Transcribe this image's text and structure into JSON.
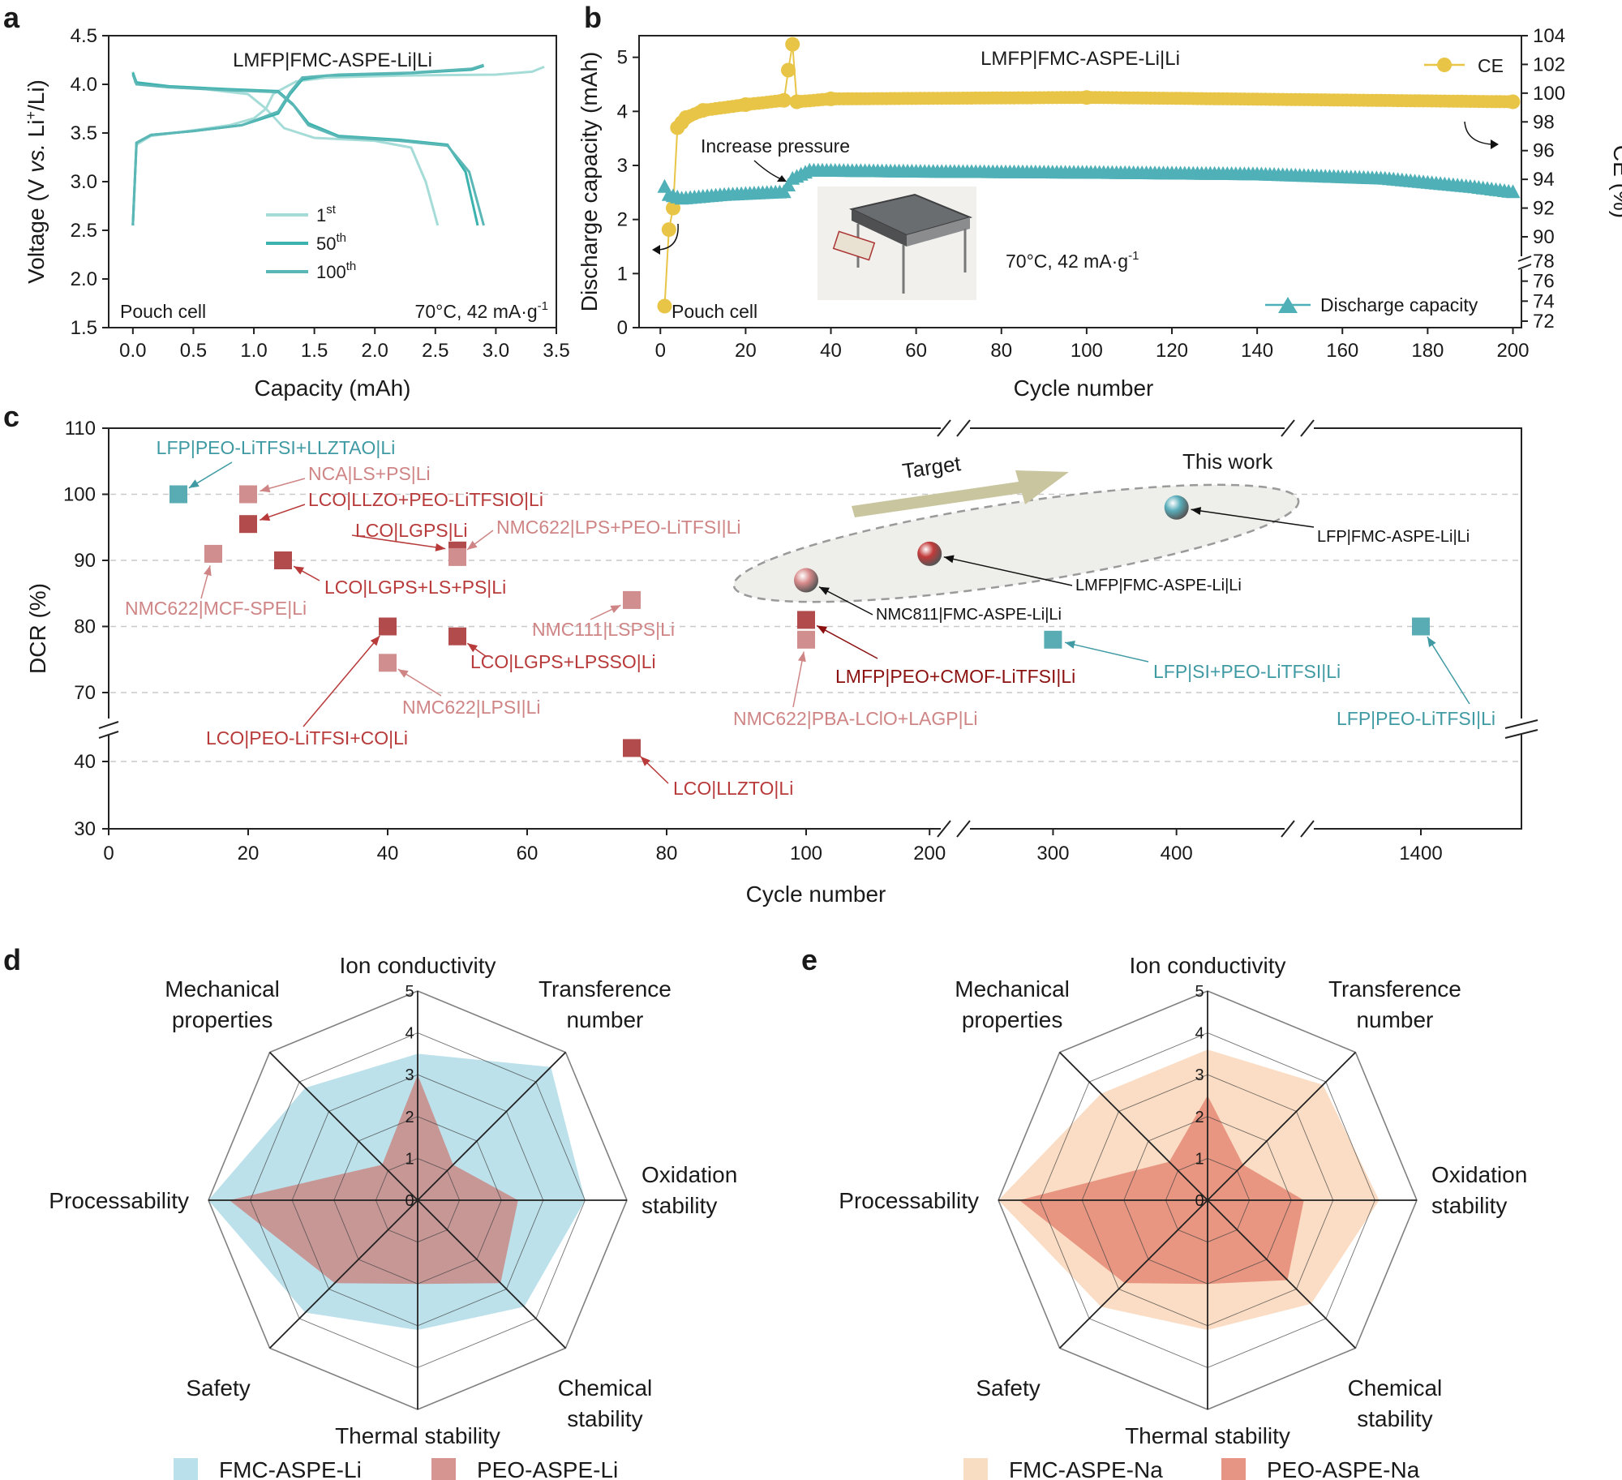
{
  "panels": {
    "a": {
      "letter": "a",
      "chart_data": {
        "type": "line",
        "title": "LMFP|FMC-ASPE-Li|Li",
        "xlabel": "Capacity (mAh)",
        "ylabel": "Voltage (V vs. Li+/Li)",
        "ylabel_parts": {
          "pre": "Voltage (V ",
          "italic": "vs.",
          "mid": " Li",
          "sup": "+",
          "post": "/Li)"
        },
        "xlim": [
          -0.2,
          3.5
        ],
        "ylim": [
          1.5,
          4.5
        ],
        "xticks": [
          "0.0",
          "0.5",
          "1.0",
          "1.5",
          "2.0",
          "2.5",
          "3.0",
          "3.5"
        ],
        "yticks": [
          "1.5",
          "2.0",
          "2.5",
          "3.0",
          "3.5",
          "4.0",
          "4.5"
        ],
        "annotations": {
          "left": "Pouch cell",
          "right": "70°C, 42 mA·g",
          "right_sup": "-1"
        },
        "series": [
          {
            "name": "1st",
            "base": "1",
            "sup": "st",
            "color": "#a6dcd8",
            "charge": [
              [
                0.0,
                2.55
              ],
              [
                0.03,
                3.38
              ],
              [
                0.15,
                3.47
              ],
              [
                0.4,
                3.51
              ],
              [
                0.8,
                3.58
              ],
              [
                1.0,
                3.65
              ],
              [
                1.1,
                3.75
              ],
              [
                1.16,
                3.9
              ],
              [
                1.2,
                3.93
              ],
              [
                1.35,
                4.03
              ],
              [
                1.6,
                4.07
              ],
              [
                2.2,
                4.09
              ],
              [
                3.0,
                4.1
              ],
              [
                3.3,
                4.13
              ],
              [
                3.4,
                4.18
              ]
            ],
            "discharge": [
              [
                0.0,
                4.13
              ],
              [
                0.02,
                4.02
              ],
              [
                0.2,
                3.98
              ],
              [
                0.6,
                3.95
              ],
              [
                0.95,
                3.9
              ],
              [
                1.1,
                3.75
              ],
              [
                1.25,
                3.55
              ],
              [
                1.5,
                3.45
              ],
              [
                2.0,
                3.42
              ],
              [
                2.3,
                3.35
              ],
              [
                2.42,
                3.0
              ],
              [
                2.52,
                2.55
              ]
            ]
          },
          {
            "name": "50th",
            "base": "50",
            "sup": "th",
            "color": "#3bb2ae",
            "charge": [
              [
                0.0,
                2.55
              ],
              [
                0.03,
                3.4
              ],
              [
                0.15,
                3.48
              ],
              [
                0.5,
                3.52
              ],
              [
                0.9,
                3.58
              ],
              [
                1.2,
                3.7
              ],
              [
                1.3,
                3.9
              ],
              [
                1.4,
                4.05
              ],
              [
                1.6,
                4.09
              ],
              [
                2.2,
                4.11
              ],
              [
                2.8,
                4.15
              ],
              [
                2.9,
                4.19
              ]
            ],
            "discharge": [
              [
                0.0,
                4.12
              ],
              [
                0.03,
                4.02
              ],
              [
                0.3,
                3.98
              ],
              [
                0.8,
                3.95
              ],
              [
                1.2,
                3.93
              ],
              [
                1.32,
                3.8
              ],
              [
                1.45,
                3.6
              ],
              [
                1.7,
                3.47
              ],
              [
                2.2,
                3.43
              ],
              [
                2.6,
                3.38
              ],
              [
                2.75,
                3.1
              ],
              [
                2.85,
                2.55
              ]
            ]
          },
          {
            "name": "100th",
            "base": "100",
            "sup": "th",
            "color": "#5ab7b6",
            "charge": [
              [
                0.0,
                2.55
              ],
              [
                0.03,
                3.4
              ],
              [
                0.15,
                3.48
              ],
              [
                0.5,
                3.52
              ],
              [
                0.9,
                3.58
              ],
              [
                1.2,
                3.72
              ],
              [
                1.3,
                3.92
              ],
              [
                1.4,
                4.07
              ],
              [
                1.7,
                4.1
              ],
              [
                2.3,
                4.12
              ],
              [
                2.8,
                4.16
              ],
              [
                2.9,
                4.2
              ]
            ],
            "discharge": [
              [
                0.0,
                4.1
              ],
              [
                0.03,
                4.0
              ],
              [
                0.3,
                3.97
              ],
              [
                0.8,
                3.94
              ],
              [
                1.2,
                3.92
              ],
              [
                1.33,
                3.78
              ],
              [
                1.45,
                3.58
              ],
              [
                1.7,
                3.46
              ],
              [
                2.2,
                3.42
              ],
              [
                2.6,
                3.37
              ],
              [
                2.78,
                3.1
              ],
              [
                2.9,
                2.55
              ]
            ]
          }
        ]
      }
    },
    "b": {
      "letter": "b",
      "chart_data": {
        "type": "scatter",
        "title": "LMFP|FMC-ASPE-Li|Li",
        "xlabel": "Cycle number",
        "ylabel_left": "Discharge capacity (mAh)",
        "ylabel_right": "CE (%)",
        "xlim": [
          -5,
          202
        ],
        "ylim_left": [
          0,
          5.4
        ],
        "xticks": [
          "0",
          "20",
          "40",
          "60",
          "80",
          "100",
          "120",
          "140",
          "160",
          "180",
          "200"
        ],
        "yticks_left": [
          "0",
          "1",
          "2",
          "3",
          "4",
          "5"
        ],
        "yticks_right_upper": [
          "90",
          "92",
          "94",
          "96",
          "98",
          "100",
          "102",
          "104"
        ],
        "yticks_right_lower": [
          "72",
          "74",
          "76",
          "78"
        ],
        "annotations": {
          "pressure": "Increase pressure",
          "left": "Pouch cell",
          "cond": "70°C, 42 mA·g",
          "cond_sup": "-1"
        },
        "legend": {
          "ce": "CE",
          "cap": "Discharge capacity"
        },
        "ce_color": "#e8c547",
        "cap_color": "#4fb0b8",
        "ce_points": [
          [
            1,
            73.5
          ],
          [
            2,
            90.5
          ],
          [
            3,
            92
          ],
          [
            4,
            97.6
          ],
          [
            6,
            98.3
          ],
          [
            10,
            98.8
          ],
          [
            20,
            99.2
          ],
          [
            29,
            99.5
          ],
          [
            30,
            101.6
          ],
          [
            31,
            103.4
          ],
          [
            32,
            99.4
          ],
          [
            40,
            99.6
          ],
          [
            100,
            99.7
          ],
          [
            200,
            99.4
          ]
        ],
        "capacity": [
          [
            1,
            2.6
          ],
          [
            2,
            2.45
          ],
          [
            5,
            2.38
          ],
          [
            15,
            2.45
          ],
          [
            29,
            2.5
          ],
          [
            31,
            2.75
          ],
          [
            35,
            2.9
          ],
          [
            60,
            2.88
          ],
          [
            100,
            2.86
          ],
          [
            140,
            2.83
          ],
          [
            170,
            2.75
          ],
          [
            190,
            2.6
          ],
          [
            200,
            2.5
          ]
        ]
      }
    },
    "c": {
      "letter": "c",
      "chart_data": {
        "type": "scatter",
        "xlabel": "Cycle number",
        "ylabel": "DCR (%)",
        "yticks": [
          "30",
          "40",
          "70",
          "80",
          "90",
          "100",
          "110"
        ],
        "xticks": [
          "0",
          "20",
          "40",
          "60",
          "80",
          "100",
          "200",
          "300",
          "400",
          "1400"
        ],
        "annotations": {
          "target": "Target",
          "this_work": "This work"
        },
        "points": [
          {
            "label": "LFP|PEO-LiTFSI+LLZTAO|Li",
            "x": 10,
            "y": 100,
            "kind": "square",
            "color": "#5aacb4",
            "label_color": "#3f9aa3"
          },
          {
            "label": "NCA|LS+PS|Li",
            "x": 20,
            "y": 100,
            "kind": "square",
            "color": "#d08e8e",
            "label_color": "#cf8585"
          },
          {
            "label": "LCO|LLZO+PEO-LiTFSIO|Li",
            "x": 20,
            "y": 95.5,
            "kind": "square",
            "color": "#b24c4c",
            "label_color": "#b83a3a"
          },
          {
            "label": "LCO|LGPS|Li",
            "x": 50,
            "y": 91.5,
            "kind": "square",
            "color": "#b24c4c",
            "label_color": "#b83a3a"
          },
          {
            "label": "NMC622|LPS+PEO-LiTFSI|Li",
            "x": 50,
            "y": 90.5,
            "kind": "square",
            "color": "#d08e8e",
            "label_color": "#cf8585"
          },
          {
            "label": "NMC622|MCF-SPE|Li",
            "x": 15,
            "y": 91,
            "kind": "square",
            "color": "#d08e8e",
            "label_color": "#cf8585"
          },
          {
            "label": "LCO|LGPS+LS+PS|Li",
            "x": 25,
            "y": 90,
            "kind": "square",
            "color": "#b24c4c",
            "label_color": "#b83a3a"
          },
          {
            "label": "NMC111|LSPS|Li",
            "x": 75,
            "y": 84,
            "kind": "square",
            "color": "#d08e8e",
            "label_color": "#cf8585"
          },
          {
            "label": "LCO|PEO-LiTFSI+CO|Li",
            "x": 40,
            "y": 80,
            "kind": "square",
            "color": "#b24c4c",
            "label_color": "#b83a3a"
          },
          {
            "label": "LCO|LGPS+LPSSO|Li",
            "x": 50,
            "y": 78.5,
            "kind": "square",
            "color": "#b24c4c",
            "label_color": "#b83a3a"
          },
          {
            "label": "NMC622|LPSI|Li",
            "x": 40,
            "y": 74.5,
            "kind": "square",
            "color": "#d08e8e",
            "label_color": "#cf8585"
          },
          {
            "label": "LMFP|PEO+CMOF-LiTFSI|Li",
            "x": 100,
            "y": 81,
            "kind": "square",
            "color": "#b24c4c",
            "label_color": "#8b1010"
          },
          {
            "label": "NMC622|PBA-LClO+LAGP|Li",
            "x": 100,
            "y": 78,
            "kind": "square",
            "color": "#d08e8e",
            "label_color": "#cf8585"
          },
          {
            "label": "LFP|SI+PEO-LiTFSI|Li",
            "x": 300,
            "y": 78,
            "kind": "square",
            "color": "#5aacb4",
            "label_color": "#3f9aa3"
          },
          {
            "label": "LFP|PEO-LiTFSI|Li",
            "x": 1400,
            "y": 80,
            "kind": "square",
            "color": "#5aacb4",
            "label_color": "#3f9aa3"
          },
          {
            "label": "LCO|LLZTO|Li",
            "x": 75,
            "y": 42,
            "kind": "square",
            "color": "#b24c4c",
            "label_color": "#b83a3a"
          },
          {
            "label": "NMC811|FMC-ASPE-Li|Li",
            "x": 100,
            "y": 87,
            "kind": "sphere",
            "color": "#d88a8a",
            "label_color": "#111111"
          },
          {
            "label": "LMFP|FMC-ASPE-Li|Li",
            "x": 200,
            "y": 91,
            "kind": "sphere",
            "color": "#c23a3a",
            "label_color": "#111111"
          },
          {
            "label": "LFP|FMC-ASPE-Li|Li",
            "x": 400,
            "y": 98,
            "kind": "sphere",
            "color": "#5aaebb",
            "label_color": "#111111"
          }
        ]
      }
    },
    "d": {
      "letter": "d",
      "chart_data": {
        "type": "radar",
        "axes": [
          [
            "Ion conductivity"
          ],
          [
            "Transference",
            "number"
          ],
          [
            "Oxidation",
            "stability"
          ],
          [
            "Chemical",
            "stability"
          ],
          [
            "Thermal stability"
          ],
          [
            "Safety"
          ],
          [
            "Processability"
          ],
          [
            "Mechanical",
            "properties"
          ]
        ],
        "rticks": [
          "0",
          "1",
          "2",
          "3",
          "4",
          "5"
        ],
        "rmax": 5,
        "series": [
          {
            "name": "FMC-ASPE-Li",
            "values": [
              3.5,
              4.5,
              4.0,
              3.6,
              3.1,
              3.8,
              5.0,
              3.8
            ],
            "color": "#a9d8e6"
          },
          {
            "name": "PEO-ASPE-Li",
            "values": [
              3.0,
              1.2,
              2.4,
              2.8,
              2.0,
              2.8,
              4.5,
              1.2
            ],
            "color": "#cc7a74"
          }
        ]
      }
    },
    "e": {
      "letter": "e",
      "chart_data": {
        "type": "radar",
        "axes": [
          [
            "Ion conductivity"
          ],
          [
            "Transference",
            "number"
          ],
          [
            "Oxidation",
            "stability"
          ],
          [
            "Chemical",
            "stability"
          ],
          [
            "Thermal stability"
          ],
          [
            "Safety"
          ],
          [
            "Processability"
          ],
          [
            "Mechanical",
            "properties"
          ]
        ],
        "rticks": [
          "0",
          "1",
          "2",
          "3",
          "4",
          "5"
        ],
        "rmax": 5,
        "series": [
          {
            "name": "FMC-ASPE-Na",
            "values": [
              3.6,
              3.9,
              4.1,
              3.5,
              3.1,
              3.6,
              5.0,
              3.6
            ],
            "color": "#f8d4b4"
          },
          {
            "name": "PEO-ASPE-Na",
            "values": [
              2.5,
              1.2,
              2.3,
              2.7,
              2.0,
              2.8,
              4.5,
              1.3
            ],
            "color": "#e07a66"
          }
        ]
      }
    }
  }
}
